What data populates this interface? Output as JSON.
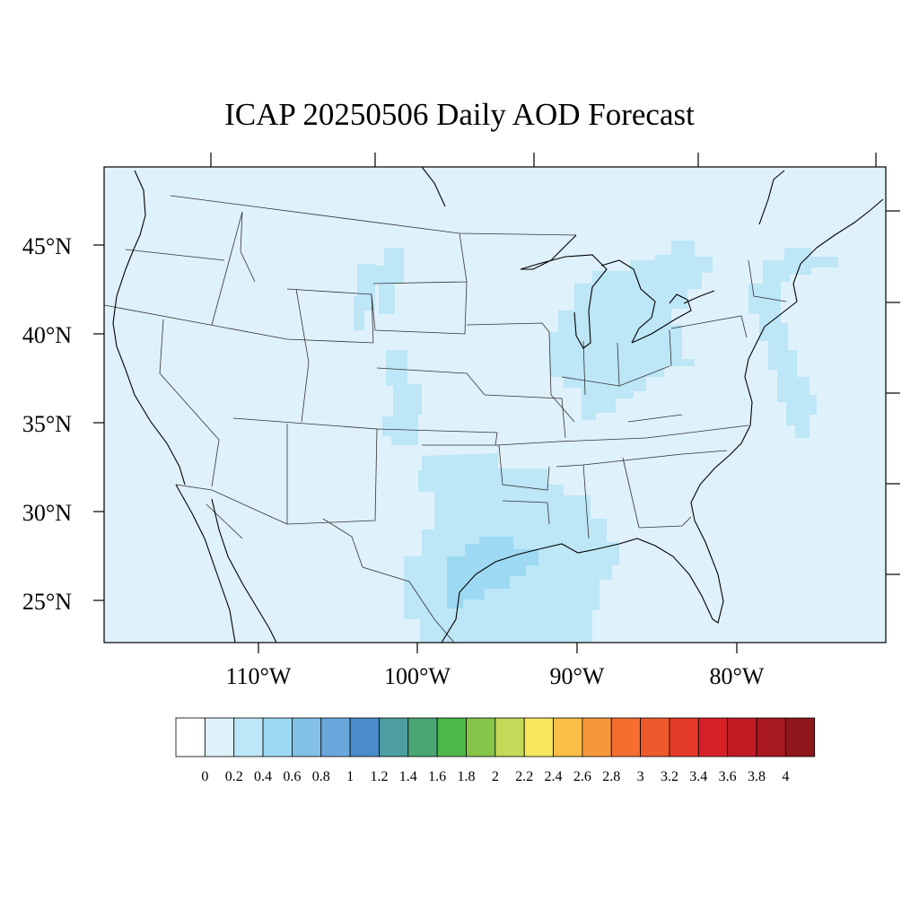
{
  "map": {
    "title": "ICAP 20250506 Daily AOD Forecast",
    "lat_labels": [
      "45°N",
      "40°N",
      "35°N",
      "30°N",
      "25°N"
    ],
    "lon_labels": [
      "110°W",
      "100°W",
      "90°W",
      "80°W"
    ],
    "background_aod_color": "#dff1fa",
    "land_outline_color": "#000000",
    "state_line_color": "#333333"
  },
  "colorbar": {
    "colors": [
      "#ffffff",
      "#dff1fa",
      "#bde6f7",
      "#9dd9f3",
      "#83c0e7",
      "#6aa8dc",
      "#4a8ccb",
      "#4d9ea1",
      "#49a673",
      "#4db848",
      "#85c54a",
      "#c3d957",
      "#f8e65b",
      "#f9be47",
      "#f7973b",
      "#f56e2f",
      "#ee5a2c",
      "#e43a28",
      "#d72028",
      "#c11c24",
      "#a8191f",
      "#8f161b"
    ],
    "tick_labels": [
      "0",
      "0.2",
      "0.4",
      "0.6",
      "0.8",
      "1",
      "1.2",
      "1.4",
      "1.6",
      "1.8",
      "2",
      "2.2",
      "2.4",
      "2.6",
      "2.8",
      "3",
      "3.2",
      "3.4",
      "3.6",
      "3.8",
      "4"
    ]
  },
  "aod_regions": [
    {
      "name": "south-central",
      "level": "0.2-0.4",
      "color": "#bde6f7"
    },
    {
      "name": "texas-gulf-coast",
      "level": "0.4-0.6",
      "color": "#9dd9f3"
    },
    {
      "name": "midwest-great-lakes",
      "level": "0.2-0.4",
      "color": "#bde6f7"
    },
    {
      "name": "northeast-atlantic",
      "level": "0.2-0.4",
      "color": "#bde6f7"
    },
    {
      "name": "central-plains",
      "level": "0.2-0.4",
      "color": "#bde6f7"
    }
  ]
}
